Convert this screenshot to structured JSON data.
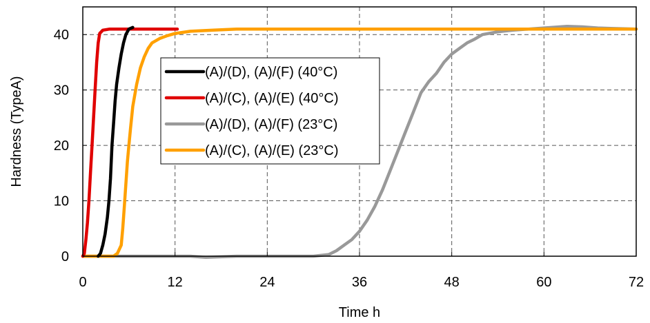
{
  "chart_data": {
    "type": "line",
    "title": "",
    "xlabel": "Time h",
    "ylabel": "Hardness (TypeA)",
    "xlim": [
      0,
      72
    ],
    "ylim": [
      0,
      45
    ],
    "xticks": [
      0,
      12,
      24,
      36,
      48,
      60,
      72
    ],
    "yticks": [
      0,
      10,
      20,
      30,
      40
    ],
    "grid": true,
    "grid_style": "dashed",
    "legend_position": "upper-left-center",
    "series": [
      {
        "name": "(A)/(D), (A)/(F) (40°C)",
        "color": "#000000",
        "x": [
          2.0,
          2.3,
          2.6,
          2.9,
          3.2,
          3.4,
          3.6,
          3.7,
          3.8,
          4.0,
          4.2,
          4.4,
          4.7,
          5.0,
          5.3,
          5.6,
          6.0,
          6.5
        ],
        "y": [
          0,
          0.5,
          2,
          4,
          7,
          10,
          14,
          17,
          20,
          24,
          28,
          31,
          34,
          36.5,
          38.5,
          40,
          41,
          41.3
        ]
      },
      {
        "name": "(A)/(C), (A)/(E) (40°C)",
        "color": "#e00000",
        "x": [
          0,
          0.2,
          0.4,
          0.6,
          0.8,
          1.0,
          1.2,
          1.4,
          1.6,
          1.8,
          2.0,
          2.2,
          2.6,
          3.5,
          6.0,
          12.3
        ],
        "y": [
          0,
          0.5,
          3,
          6,
          10,
          15,
          20,
          25,
          30,
          35,
          38.5,
          40.2,
          40.8,
          41,
          41,
          41
        ]
      },
      {
        "name": "(A)/(D), (A)/(F) (23°C)",
        "color": "#999999",
        "x": [
          0,
          5,
          10,
          14,
          16,
          20,
          24,
          28,
          30,
          32,
          33,
          34,
          35,
          36,
          37,
          38,
          39,
          40,
          41,
          42,
          43,
          44,
          45,
          46,
          47,
          48,
          49,
          50,
          51,
          52,
          54,
          56,
          58,
          60,
          63,
          65,
          67,
          69,
          72
        ],
        "y": [
          0,
          0,
          0,
          0,
          -0.2,
          0,
          0,
          0,
          0,
          0.3,
          1,
          2,
          3,
          4.5,
          6.5,
          9,
          12,
          15.5,
          19,
          22.5,
          26,
          29.5,
          31.5,
          33,
          35,
          36.5,
          37.5,
          38.5,
          39.2,
          40,
          40.5,
          40.8,
          41,
          41.2,
          41.5,
          41.4,
          41.2,
          41.1,
          41
        ]
      },
      {
        "name": "(A)/(C), (A)/(E) (23°C)",
        "color": "#ffa000",
        "x": [
          0,
          3,
          4,
          4.5,
          5.0,
          5.2,
          5.4,
          5.6,
          5.8,
          6.0,
          6.2,
          6.5,
          7.0,
          7.5,
          8.0,
          8.5,
          9.0,
          10.0,
          11.0,
          12.0,
          14.0,
          17.0,
          20.0,
          24.0,
          36.0,
          48.0,
          60.0,
          72.0
        ],
        "y": [
          0,
          0,
          0,
          0.5,
          2,
          5,
          9,
          13,
          17,
          20,
          23,
          27,
          31,
          34,
          36,
          37.5,
          38.5,
          39.3,
          39.8,
          40.2,
          40.6,
          40.8,
          41,
          41,
          41,
          41,
          41,
          41
        ]
      }
    ]
  }
}
